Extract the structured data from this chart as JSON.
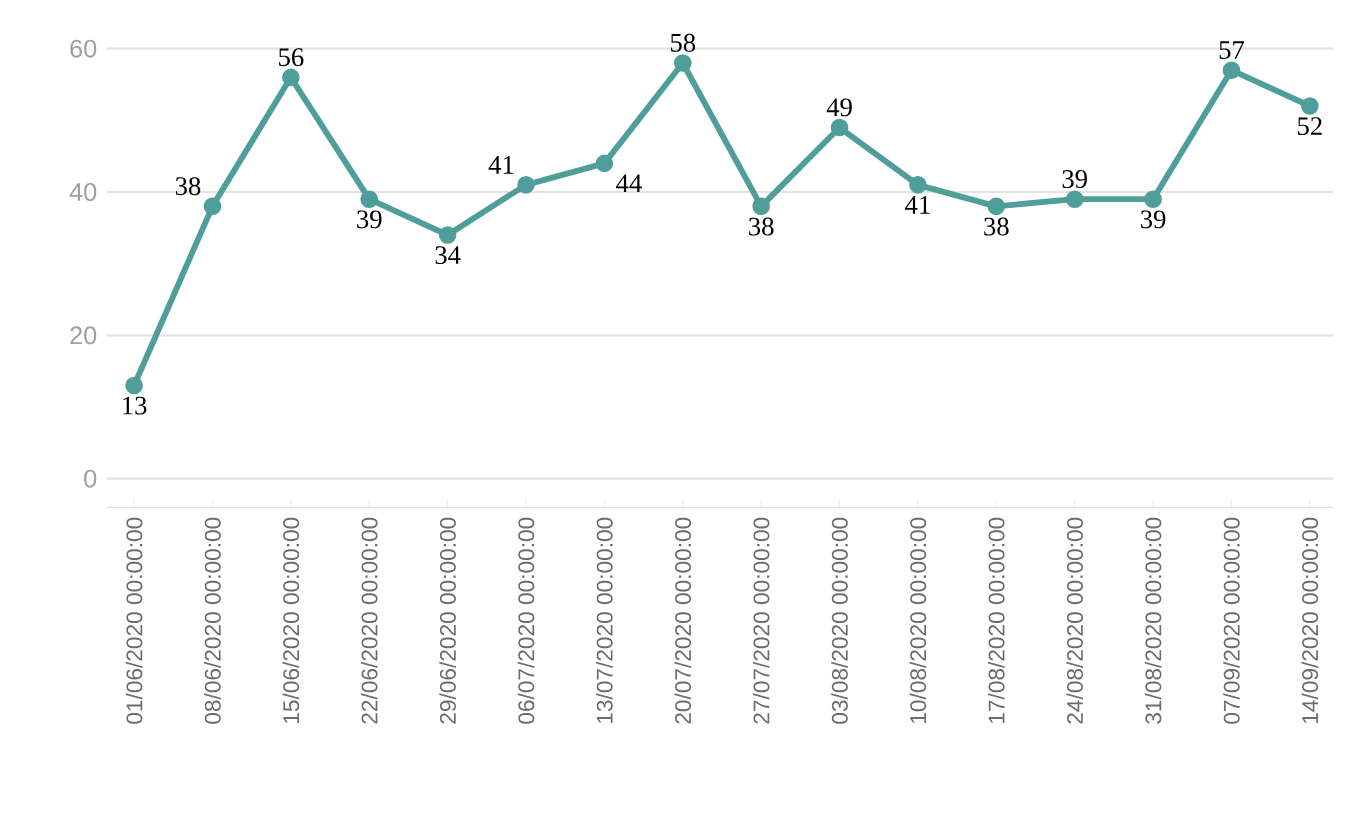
{
  "chart_data": {
    "type": "line",
    "categories": [
      "01/06/2020 00:00:00",
      "08/06/2020 00:00:00",
      "15/06/2020 00:00:00",
      "22/06/2020 00:00:00",
      "29/06/2020 00:00:00",
      "06/07/2020 00:00:00",
      "13/07/2020 00:00:00",
      "20/07/2020 00:00:00",
      "27/07/2020 00:00:00",
      "03/08/2020 00:00:00",
      "10/08/2020 00:00:00",
      "17/08/2020 00:00:00",
      "24/08/2020 00:00:00",
      "31/08/2020 00:00:00",
      "07/09/2020 00:00:00",
      "14/09/2020 00:00:00"
    ],
    "values": [
      13,
      38,
      56,
      39,
      34,
      41,
      44,
      58,
      38,
      49,
      41,
      38,
      39,
      39,
      57,
      52
    ],
    "color": "#4f9e9a",
    "ylim": [
      -4,
      60
    ],
    "yticks": [
      0,
      20,
      40,
      60
    ],
    "grid": "y",
    "marker": "circle",
    "line_style": "solid",
    "data_labels": true
  }
}
